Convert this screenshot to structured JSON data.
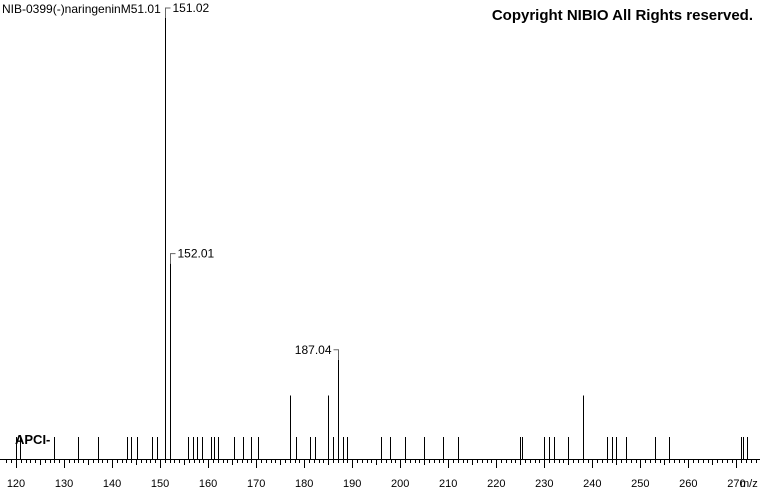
{
  "header": {
    "title": "NIB-0399(-)naringeninM51.01",
    "copyright": "Copyright NIBIO All Rights reserved."
  },
  "ionization": "APCI-",
  "x_unit": "m/z",
  "chart_data": {
    "type": "bar",
    "subtype": "mass-spectrum-stick",
    "title": "NIB-0399(-)naringeninM51.01",
    "xlabel": "m/z",
    "ylabel": "",
    "xlim": [
      117.5,
      274.5
    ],
    "ylim": [
      0,
      100
    ],
    "x_ticks": [
      120,
      130,
      140,
      150,
      160,
      170,
      180,
      190,
      200,
      210,
      220,
      230,
      240,
      250,
      260,
      270
    ],
    "grid": false,
    "peaks": [
      {
        "mz": 120.0,
        "intensity": 5.0
      },
      {
        "mz": 120.8,
        "intensity": 5.0
      },
      {
        "mz": 128.0,
        "intensity": 5.0
      },
      {
        "mz": 133.0,
        "intensity": 5.0
      },
      {
        "mz": 137.0,
        "intensity": 5.0
      },
      {
        "mz": 143.2,
        "intensity": 5.0
      },
      {
        "mz": 144.0,
        "intensity": 5.0
      },
      {
        "mz": 145.1,
        "intensity": 5.0
      },
      {
        "mz": 148.3,
        "intensity": 5.0
      },
      {
        "mz": 149.3,
        "intensity": 5.0
      },
      {
        "mz": 151.02,
        "intensity": 100.0,
        "label": "151.02"
      },
      {
        "mz": 152.01,
        "intensity": 44.3,
        "label": "152.01"
      },
      {
        "mz": 155.8,
        "intensity": 5.0
      },
      {
        "mz": 156.8,
        "intensity": 5.0
      },
      {
        "mz": 157.6,
        "intensity": 5.0
      },
      {
        "mz": 158.7,
        "intensity": 5.0
      },
      {
        "mz": 160.5,
        "intensity": 5.0
      },
      {
        "mz": 161.3,
        "intensity": 5.0
      },
      {
        "mz": 162.0,
        "intensity": 5.0
      },
      {
        "mz": 165.3,
        "intensity": 5.0
      },
      {
        "mz": 167.3,
        "intensity": 5.0
      },
      {
        "mz": 169.0,
        "intensity": 5.0
      },
      {
        "mz": 170.3,
        "intensity": 5.0
      },
      {
        "mz": 177.1,
        "intensity": 14.4
      },
      {
        "mz": 178.2,
        "intensity": 5.0
      },
      {
        "mz": 181.2,
        "intensity": 5.0
      },
      {
        "mz": 182.3,
        "intensity": 5.0
      },
      {
        "mz": 185.0,
        "intensity": 14.4
      },
      {
        "mz": 186.0,
        "intensity": 5.0
      },
      {
        "mz": 187.04,
        "intensity": 22.5,
        "label": "187.04"
      },
      {
        "mz": 188.0,
        "intensity": 5.0
      },
      {
        "mz": 189.0,
        "intensity": 5.0
      },
      {
        "mz": 195.9,
        "intensity": 5.0
      },
      {
        "mz": 197.9,
        "intensity": 5.0
      },
      {
        "mz": 201.0,
        "intensity": 5.0
      },
      {
        "mz": 205.0,
        "intensity": 5.0
      },
      {
        "mz": 209.0,
        "intensity": 5.0
      },
      {
        "mz": 212.0,
        "intensity": 5.0
      },
      {
        "mz": 225.0,
        "intensity": 5.0
      },
      {
        "mz": 225.3,
        "intensity": 5.0
      },
      {
        "mz": 230.0,
        "intensity": 5.0
      },
      {
        "mz": 231.0,
        "intensity": 5.0
      },
      {
        "mz": 232.0,
        "intensity": 5.0
      },
      {
        "mz": 235.0,
        "intensity": 5.0
      },
      {
        "mz": 238.0,
        "intensity": 14.4
      },
      {
        "mz": 243.0,
        "intensity": 5.0
      },
      {
        "mz": 244.0,
        "intensity": 5.0
      },
      {
        "mz": 245.0,
        "intensity": 5.0
      },
      {
        "mz": 247.0,
        "intensity": 5.0
      },
      {
        "mz": 253.0,
        "intensity": 5.0
      },
      {
        "mz": 256.0,
        "intensity": 5.0
      },
      {
        "mz": 271.0,
        "intensity": 5.0
      },
      {
        "mz": 271.4,
        "intensity": 5.0
      },
      {
        "mz": 272.2,
        "intensity": 5.0
      }
    ]
  }
}
